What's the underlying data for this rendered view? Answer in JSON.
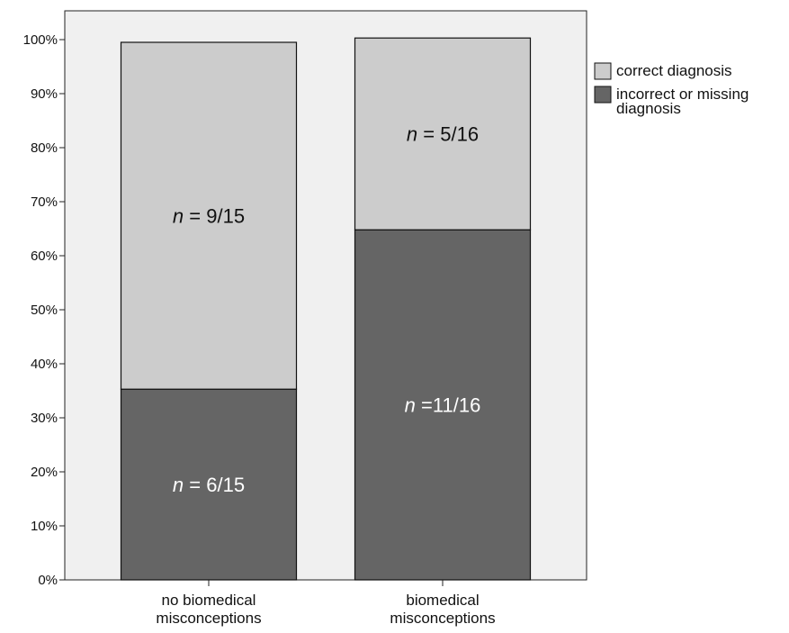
{
  "chart_data": {
    "type": "bar",
    "stacked": true,
    "categories": [
      "no biomedical misconceptions",
      "biomedical misconceptions"
    ],
    "category_lines": [
      [
        "no biomedical",
        "misconceptions"
      ],
      [
        "biomedical",
        "misconceptions"
      ]
    ],
    "series": [
      {
        "name": "incorrect or missing diagnosis",
        "legend_lines": [
          "incorrect or missing",
          "diagnosis"
        ],
        "values": [
          35.3,
          64.8
        ],
        "color": "#656565",
        "labels": [
          {
            "n": "n",
            "rest": " = 6/15"
          },
          {
            "n": "n",
            "rest": " =11/16"
          }
        ],
        "label_color": "#ffffff"
      },
      {
        "name": "correct diagnosis",
        "legend_lines": [
          "correct diagnosis"
        ],
        "values": [
          64.2,
          35.5
        ],
        "color": "#cccccc",
        "labels": [
          {
            "n": "n",
            "rest": " = 9/15"
          },
          {
            "n": "n",
            "rest": " = 5/16"
          }
        ],
        "label_color": "#111111"
      }
    ],
    "yticks": [
      "0%",
      "10%",
      "20%",
      "30%",
      "40%",
      "50%",
      "60%",
      "70%",
      "80%",
      "90%",
      "100%"
    ],
    "ylim": [
      0,
      100
    ],
    "grid": false,
    "legend_position": "right",
    "plot_background": "#f0f0f0"
  }
}
